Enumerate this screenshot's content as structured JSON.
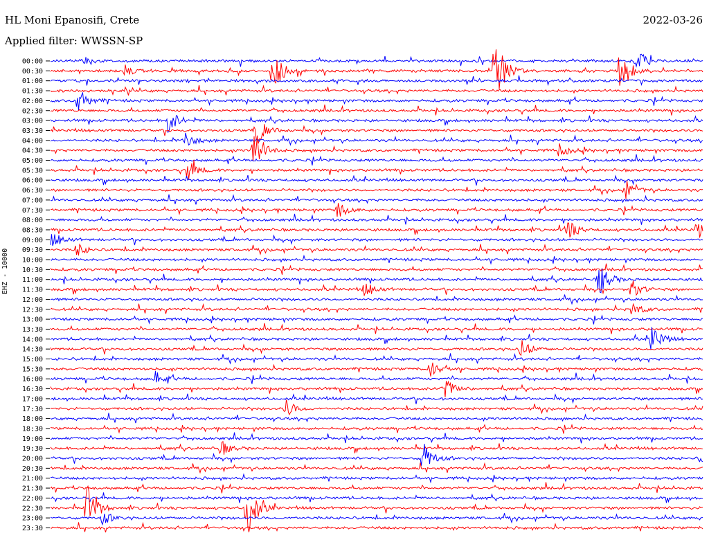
{
  "header": {
    "station": "HL Moni Epanosifi, Crete",
    "filter": "Applied filter: WWSSN-SP",
    "date": "2022-03-26"
  },
  "colors": {
    "odd": "#0000ff",
    "even": "#ff0000",
    "label": "#000000"
  },
  "chart_data": {
    "type": "line",
    "title": "HL Moni Epanosifi, Crete",
    "subtitle": "Applied filter: WWSSN-SP",
    "date": "2022-03-26",
    "ylabel": "EHZ - 10000",
    "xlabel": "",
    "row_labels": [
      "00:00",
      "00:30",
      "01:00",
      "01:30",
      "02:00",
      "02:30",
      "03:00",
      "03:30",
      "04:00",
      "04:30",
      "05:00",
      "05:30",
      "06:00",
      "06:30",
      "07:00",
      "07:30",
      "08:00",
      "08:30",
      "09:00",
      "09:30",
      "10:00",
      "10:30",
      "11:00",
      "11:30",
      "12:00",
      "12:30",
      "13:00",
      "13:30",
      "14:00",
      "14:30",
      "15:00",
      "15:30",
      "16:00",
      "16:30",
      "17:00",
      "17:30",
      "18:00",
      "18:30",
      "19:00",
      "19:30",
      "20:00",
      "20:30",
      "21:00",
      "21:30",
      "22:00",
      "22:30",
      "23:00",
      "23:30"
    ],
    "row_colors": [
      "#0000ff",
      "#ff0000"
    ],
    "events": [
      {
        "row": 0,
        "pos": 0.05,
        "amp": 8
      },
      {
        "row": 0,
        "pos": 0.897,
        "amp": 18
      },
      {
        "row": 1,
        "pos": 0.115,
        "amp": 8
      },
      {
        "row": 1,
        "pos": 0.34,
        "amp": 40
      },
      {
        "row": 1,
        "pos": 0.68,
        "amp": 60
      },
      {
        "row": 1,
        "pos": 0.872,
        "amp": 35
      },
      {
        "row": 4,
        "pos": 0.042,
        "amp": 20
      },
      {
        "row": 6,
        "pos": 0.18,
        "amp": 20
      },
      {
        "row": 7,
        "pos": 0.317,
        "amp": 22
      },
      {
        "row": 8,
        "pos": 0.205,
        "amp": 14
      },
      {
        "row": 9,
        "pos": 0.31,
        "amp": 40
      },
      {
        "row": 9,
        "pos": 0.78,
        "amp": 10
      },
      {
        "row": 11,
        "pos": 0.21,
        "amp": 16
      },
      {
        "row": 13,
        "pos": 0.88,
        "amp": 16
      },
      {
        "row": 15,
        "pos": 0.44,
        "amp": 12
      },
      {
        "row": 17,
        "pos": 0.79,
        "amp": 18
      },
      {
        "row": 17,
        "pos": 0.99,
        "amp": 14
      },
      {
        "row": 18,
        "pos": 0.0,
        "amp": 14
      },
      {
        "row": 19,
        "pos": 0.04,
        "amp": 10
      },
      {
        "row": 22,
        "pos": 0.84,
        "amp": 26
      },
      {
        "row": 23,
        "pos": 0.48,
        "amp": 12
      },
      {
        "row": 23,
        "pos": 0.89,
        "amp": 14
      },
      {
        "row": 25,
        "pos": 0.89,
        "amp": 10
      },
      {
        "row": 28,
        "pos": 0.92,
        "amp": 22
      },
      {
        "row": 29,
        "pos": 0.72,
        "amp": 16
      },
      {
        "row": 31,
        "pos": 0.58,
        "amp": 16
      },
      {
        "row": 32,
        "pos": 0.16,
        "amp": 10
      },
      {
        "row": 33,
        "pos": 0.6,
        "amp": 22
      },
      {
        "row": 35,
        "pos": 0.36,
        "amp": 14
      },
      {
        "row": 39,
        "pos": 0.26,
        "amp": 12
      },
      {
        "row": 40,
        "pos": 0.57,
        "amp": 26
      },
      {
        "row": 40,
        "pos": 0.995,
        "amp": 10
      },
      {
        "row": 45,
        "pos": 0.055,
        "amp": 40
      },
      {
        "row": 45,
        "pos": 0.3,
        "amp": 50
      },
      {
        "row": 46,
        "pos": 0.08,
        "amp": 10
      }
    ]
  }
}
